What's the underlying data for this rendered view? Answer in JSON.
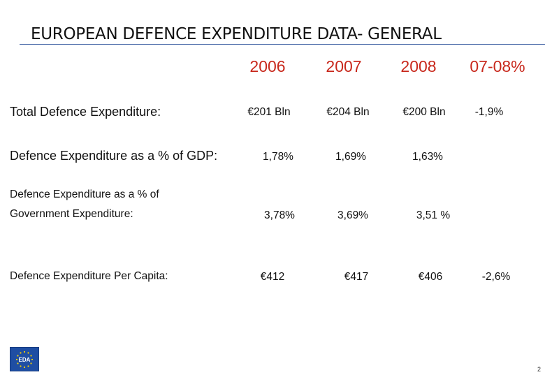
{
  "title": "EUROPEAN DEFENCE EXPENDITURE DATA- GENERAL",
  "columns": [
    "2006",
    "2007",
    "2008",
    "07-08%"
  ],
  "rows": [
    {
      "label": "Total Defence Expenditure:",
      "values": [
        "€201 Bln",
        "€204 Bln",
        "€200 Bln",
        "-1,9%"
      ]
    },
    {
      "label": "Defence Expenditure as a % of GDP:",
      "values": [
        "1,78%",
        "1,69%",
        "1,63%",
        ""
      ]
    },
    {
      "label_line1": "Defence  Expenditure as a % of",
      "label_line2": "Government Expenditure:",
      "values": [
        "3,78%",
        "3,69%",
        "3,51 %",
        ""
      ]
    },
    {
      "label": "Defence Expenditure Per Capita:",
      "values": [
        "€412",
        "€417",
        "€406",
        "-2,6%"
      ]
    }
  ],
  "logo": {
    "text": "EDA",
    "icon": "eu-stars-icon",
    "color": "#1f4ea3"
  },
  "page_number": "2",
  "colors": {
    "header": "#c8281c",
    "rule": "#4a6aa8"
  }
}
